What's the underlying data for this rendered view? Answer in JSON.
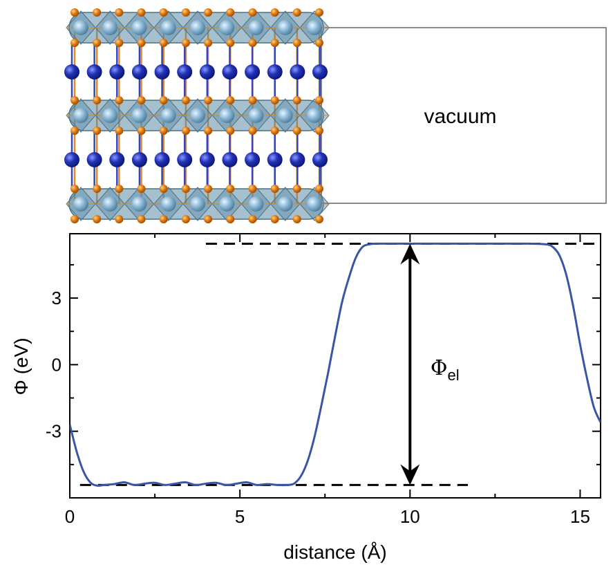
{
  "crystal": {
    "vacuum_label": "vacuum",
    "colors": {
      "octahedron": "#5f8ca6",
      "octahedron_edge": "#4a7085",
      "metal_light": "#8ab8d6",
      "oxygen": "#e07a10",
      "spacer_atom": "#2233b8",
      "bond_blue": "#3346c0",
      "box_line": "#666666"
    },
    "layers": 3,
    "octahedra_per_layer": 9,
    "oxygen_per_row": 12,
    "spacer_atoms_per_row": 12,
    "spacer_rows": 2
  },
  "chart_data": {
    "type": "line",
    "title": "",
    "xlabel": "distance (Å)",
    "ylabel": "Φ (eV)",
    "xlim": [
      0,
      15.6
    ],
    "ylim": [
      -6.0,
      5.9
    ],
    "xticks": [
      0,
      5,
      10,
      15
    ],
    "xtick_labels": [
      "0",
      "5",
      "10",
      "15"
    ],
    "yticks": [
      -3,
      0,
      3
    ],
    "ytick_labels": [
      "-3",
      "0",
      "3"
    ],
    "series": [
      {
        "name": "Φ",
        "color": "#3a55a8",
        "x": [
          0.0,
          0.2,
          0.4,
          0.6,
          0.8,
          1.0,
          1.3,
          1.6,
          1.9,
          2.2,
          2.5,
          2.8,
          3.1,
          3.4,
          3.7,
          4.0,
          4.3,
          4.6,
          4.9,
          5.2,
          5.5,
          5.8,
          6.1,
          6.4,
          6.6,
          6.8,
          7.0,
          7.2,
          7.4,
          7.6,
          7.8,
          8.0,
          8.2,
          8.4,
          8.6,
          8.8,
          9.0,
          9.5,
          10.0,
          10.5,
          11.0,
          11.5,
          12.0,
          12.5,
          13.0,
          13.5,
          14.0,
          14.2,
          14.4,
          14.6,
          14.8,
          15.0,
          15.2,
          15.4,
          15.6
        ],
        "values": [
          -2.7,
          -3.9,
          -4.8,
          -5.3,
          -5.45,
          -5.42,
          -5.38,
          -5.3,
          -5.42,
          -5.36,
          -5.32,
          -5.42,
          -5.36,
          -5.3,
          -5.42,
          -5.36,
          -5.32,
          -5.42,
          -5.36,
          -5.3,
          -5.42,
          -5.38,
          -5.42,
          -5.42,
          -5.35,
          -5.0,
          -4.3,
          -3.2,
          -1.8,
          -0.3,
          1.3,
          2.8,
          3.9,
          4.8,
          5.3,
          5.42,
          5.45,
          5.45,
          5.45,
          5.45,
          5.45,
          5.45,
          5.45,
          5.45,
          5.45,
          5.45,
          5.42,
          5.3,
          4.9,
          4.0,
          2.6,
          0.9,
          -0.6,
          -1.9,
          -2.6
        ]
      }
    ],
    "reference_lines": [
      {
        "name": "top",
        "y": 5.45,
        "x_start": 4.0,
        "x_end": 15.6,
        "style": "dashed"
      },
      {
        "name": "bottom",
        "y": -5.42,
        "x_start": 0.3,
        "x_end": 11.7,
        "style": "dashed"
      }
    ],
    "arrow": {
      "x": 10.0,
      "y_from": -5.42,
      "y_to": 5.45
    },
    "annotation": {
      "symbol": "Φ",
      "subscript": "el",
      "x": 10.6,
      "y": -0.2
    }
  }
}
